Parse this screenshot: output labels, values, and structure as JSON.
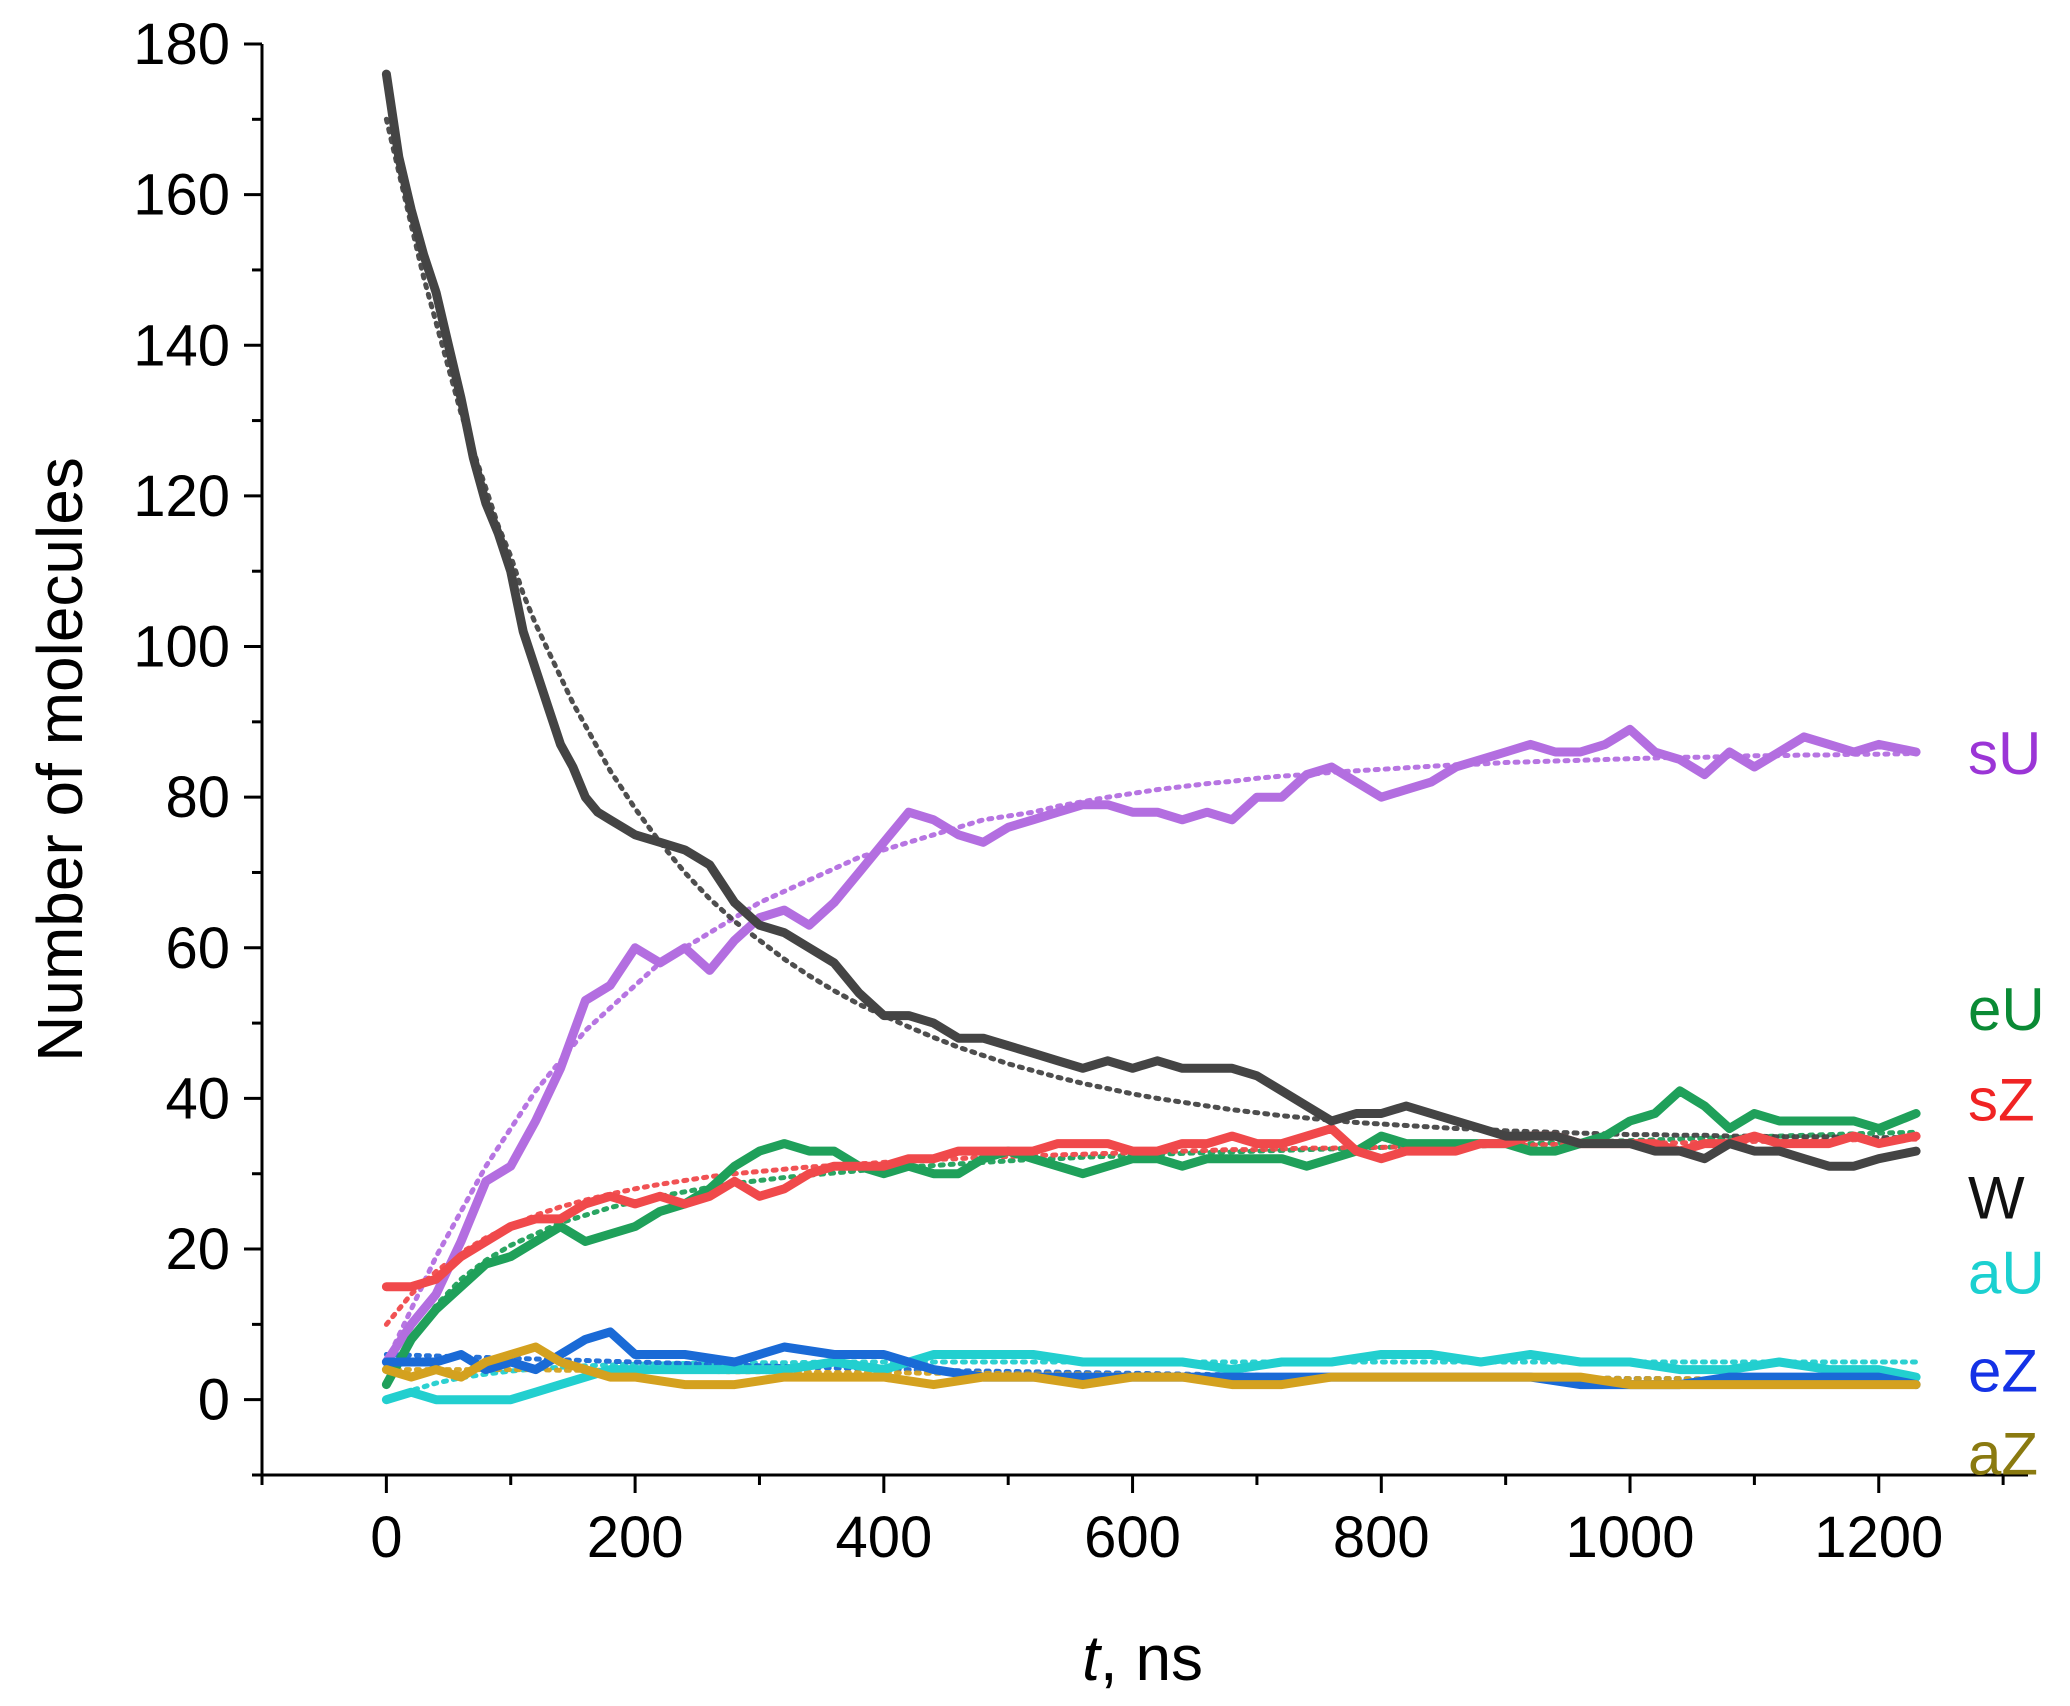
{
  "chart_data": {
    "type": "line",
    "title": "",
    "xlabel_italic": "t",
    "xlabel_rest": ", ns",
    "ylabel": "Number of molecules",
    "xlim": [
      -100,
      1320
    ],
    "ylim": [
      -10,
      180
    ],
    "x_ticks": [
      0,
      200,
      400,
      600,
      800,
      1000,
      1200
    ],
    "x_tick_labels": [
      "0",
      "200",
      "400",
      "600",
      "800",
      "1000",
      "1200"
    ],
    "y_ticks": [
      0,
      20,
      40,
      60,
      80,
      100,
      120,
      140,
      160,
      180
    ],
    "y_tick_labels": [
      "0",
      "20",
      "40",
      "60",
      "80",
      "100",
      "120",
      "140",
      "160",
      "180"
    ],
    "grid": false,
    "legend": "inline labels at right end of each series",
    "series": [
      {
        "name": "sU",
        "color": "#b36ee0",
        "label_color": "#9b35d6",
        "label_y": 86,
        "x": [
          0,
          20,
          40,
          60,
          80,
          100,
          120,
          140,
          160,
          180,
          200,
          220,
          240,
          260,
          280,
          300,
          320,
          340,
          360,
          380,
          400,
          420,
          440,
          460,
          480,
          500,
          520,
          540,
          560,
          580,
          600,
          620,
          640,
          660,
          680,
          700,
          720,
          740,
          760,
          780,
          800,
          820,
          840,
          860,
          880,
          900,
          920,
          940,
          960,
          980,
          1000,
          1020,
          1040,
          1060,
          1080,
          1100,
          1120,
          1140,
          1160,
          1180,
          1200,
          1230
        ],
        "y": [
          5,
          10,
          14,
          21,
          29,
          31,
          37,
          44,
          53,
          55,
          60,
          58,
          60,
          57,
          61,
          64,
          65,
          63,
          66,
          70,
          74,
          78,
          77,
          75,
          74,
          76,
          77,
          78,
          79,
          79,
          78,
          78,
          77,
          78,
          77,
          80,
          80,
          83,
          84,
          82,
          80,
          81,
          82,
          84,
          85,
          86,
          87,
          86,
          86,
          87,
          89,
          86,
          85,
          83,
          86,
          84,
          86,
          88,
          87,
          86,
          87,
          86
        ],
        "fit": [
          5,
          12,
          19,
          25,
          31,
          36,
          41,
          45,
          49,
          52,
          55,
          58,
          60,
          62,
          64,
          66,
          67.5,
          69,
          70.5,
          72,
          73,
          74,
          75,
          76,
          77,
          77.5,
          78,
          78.8,
          79.4,
          80,
          80.5,
          81,
          81.4,
          81.8,
          82.1,
          82.5,
          82.8,
          83,
          83.3,
          83.5,
          83.7,
          83.9,
          84.1,
          84.3,
          84.4,
          84.6,
          84.7,
          84.8,
          84.9,
          85,
          85.1,
          85.2,
          85.3,
          85.3,
          85.4,
          85.5,
          85.5,
          85.6,
          85.6,
          85.7,
          85.7,
          85.8
        ]
      },
      {
        "name": "eU",
        "color": "#1fa05a",
        "label_color": "#0a8a35",
        "label_y": 52,
        "x": [
          0,
          20,
          40,
          60,
          80,
          100,
          120,
          140,
          160,
          180,
          200,
          220,
          240,
          260,
          280,
          300,
          320,
          340,
          360,
          380,
          400,
          420,
          440,
          460,
          480,
          500,
          520,
          540,
          560,
          580,
          600,
          620,
          640,
          660,
          680,
          700,
          720,
          740,
          760,
          780,
          800,
          820,
          840,
          860,
          880,
          900,
          920,
          940,
          960,
          980,
          1000,
          1020,
          1040,
          1060,
          1080,
          1100,
          1120,
          1140,
          1160,
          1180,
          1200,
          1230
        ],
        "y": [
          2,
          8,
          12,
          15,
          18,
          19,
          21,
          23,
          21,
          22,
          23,
          25,
          26,
          28,
          31,
          33,
          34,
          33,
          33,
          31,
          30,
          31,
          30,
          30,
          32,
          33,
          32,
          31,
          30,
          31,
          32,
          32,
          31,
          32,
          32,
          32,
          32,
          31,
          32,
          33,
          35,
          34,
          34,
          34,
          34,
          34,
          33,
          33,
          34,
          35,
          37,
          38,
          41,
          39,
          36,
          38,
          37,
          37,
          37,
          37,
          36,
          38
        ],
        "fit": [
          2,
          8,
          12.5,
          16,
          18.5,
          20.5,
          22,
          23.5,
          24.5,
          25.5,
          26.3,
          27,
          27.6,
          28.2,
          28.7,
          29.1,
          29.5,
          29.8,
          30.1,
          30.4,
          30.7,
          30.9,
          31.1,
          31.3,
          31.5,
          31.7,
          31.9,
          32,
          32.2,
          32.3,
          32.4,
          32.6,
          32.7,
          32.8,
          32.9,
          33,
          33.1,
          33.2,
          33.3,
          33.4,
          33.5,
          33.6,
          33.7,
          33.7,
          33.8,
          33.9,
          34,
          34.1,
          34.2,
          34.3,
          34.4,
          34.5,
          34.6,
          34.7,
          34.8,
          34.9,
          35,
          35.1,
          35.2,
          35.3,
          35.4,
          35.5
        ]
      },
      {
        "name": "sZ",
        "color": "#f0494b",
        "label_color": "#f02424",
        "label_y": 40,
        "x": [
          0,
          20,
          40,
          60,
          80,
          100,
          120,
          140,
          160,
          180,
          200,
          220,
          240,
          260,
          280,
          300,
          320,
          340,
          360,
          380,
          400,
          420,
          440,
          460,
          480,
          500,
          520,
          540,
          560,
          580,
          600,
          620,
          640,
          660,
          680,
          700,
          720,
          740,
          760,
          780,
          800,
          820,
          840,
          860,
          880,
          900,
          920,
          940,
          960,
          980,
          1000,
          1020,
          1040,
          1060,
          1080,
          1100,
          1120,
          1140,
          1160,
          1180,
          1200,
          1230
        ],
        "y": [
          15,
          15,
          16,
          19,
          21,
          23,
          24,
          24,
          26,
          27,
          26,
          27,
          26,
          27,
          29,
          27,
          28,
          30,
          31,
          31,
          31,
          32,
          32,
          33,
          33,
          33,
          33,
          34,
          34,
          34,
          33,
          33,
          34,
          34,
          35,
          34,
          34,
          35,
          36,
          33,
          32,
          33,
          33,
          33,
          34,
          34,
          35,
          35,
          34,
          34,
          34,
          34,
          33,
          34,
          34,
          35,
          34,
          34,
          34,
          35,
          34,
          35
        ],
        "fit": [
          10,
          14,
          17,
          19.5,
          21.5,
          23,
          24.5,
          25.6,
          26.5,
          27.3,
          28,
          28.6,
          29.1,
          29.6,
          30,
          30.3,
          30.6,
          30.9,
          31.1,
          31.3,
          31.5,
          31.7,
          31.9,
          32,
          32.2,
          32.3,
          32.4,
          32.5,
          32.6,
          32.7,
          32.8,
          32.9,
          33,
          33.1,
          33.2,
          33.2,
          33.3,
          33.4,
          33.4,
          33.5,
          33.5,
          33.6,
          33.6,
          33.7,
          33.7,
          33.8,
          33.8,
          33.9,
          33.9,
          34,
          34,
          34.1,
          34.1,
          34.2,
          34.2,
          34.3,
          34.3,
          34.4,
          34.4,
          34.5,
          34.5,
          34.6
        ]
      },
      {
        "name": "W",
        "color": "#444444",
        "label_color": "#111111",
        "label_y": 27,
        "x": [
          0,
          10,
          20,
          30,
          40,
          50,
          60,
          70,
          80,
          90,
          100,
          110,
          120,
          130,
          140,
          150,
          160,
          170,
          180,
          190,
          200,
          220,
          240,
          260,
          280,
          300,
          320,
          340,
          360,
          380,
          400,
          420,
          440,
          460,
          480,
          500,
          520,
          540,
          560,
          580,
          600,
          620,
          640,
          660,
          680,
          700,
          720,
          740,
          760,
          780,
          800,
          820,
          840,
          860,
          880,
          900,
          920,
          940,
          960,
          980,
          1000,
          1020,
          1040,
          1060,
          1080,
          1100,
          1120,
          1140,
          1160,
          1180,
          1200,
          1230
        ],
        "y": [
          176,
          165,
          158,
          152,
          147,
          140,
          133,
          125,
          119,
          115,
          110,
          102,
          97,
          92,
          87,
          84,
          80,
          78,
          77,
          76,
          75,
          74,
          73,
          71,
          66,
          63,
          62,
          60,
          58,
          54,
          51,
          51,
          50,
          48,
          48,
          47,
          46,
          45,
          44,
          45,
          44,
          45,
          44,
          44,
          44,
          43,
          41,
          39,
          37,
          38,
          38,
          39,
          38,
          37,
          36,
          35,
          35,
          35,
          34,
          34,
          34,
          33,
          33,
          32,
          34,
          33,
          33,
          32,
          31,
          31,
          32,
          33
        ],
        "fit": [
          170,
          163,
          156,
          149,
          143,
          137,
          131,
          126,
          121,
          116,
          112,
          107,
          103,
          99.5,
          96,
          92.5,
          89.5,
          86.5,
          83.5,
          81,
          78.5,
          74,
          70,
          66.5,
          63.5,
          61,
          58.5,
          56.3,
          54.3,
          52.5,
          51,
          49.5,
          48.1,
          46.8,
          45.7,
          44.6,
          43.7,
          42.8,
          42,
          41.3,
          40.6,
          40,
          39.5,
          39,
          38.5,
          38.1,
          37.7,
          37.4,
          37.1,
          36.8,
          36.6,
          36.4,
          36.2,
          36,
          35.9,
          35.7,
          35.6,
          35.5,
          35.4,
          35.3,
          35.2,
          35.2,
          35.1,
          35.1,
          35,
          35,
          34.9,
          34.9,
          34.9,
          34.8,
          34.8,
          34.8
        ]
      },
      {
        "name": "aU",
        "color": "#22cfcf",
        "label_color": "#1bd0d0",
        "label_y": 17,
        "x": [
          0,
          20,
          40,
          60,
          80,
          100,
          120,
          140,
          160,
          180,
          200,
          240,
          280,
          320,
          360,
          400,
          440,
          480,
          520,
          560,
          600,
          640,
          680,
          720,
          760,
          800,
          840,
          880,
          920,
          960,
          1000,
          1040,
          1080,
          1120,
          1160,
          1200,
          1230
        ],
        "y": [
          0,
          1,
          0,
          0,
          0,
          0,
          1,
          2,
          3,
          4,
          4,
          4,
          4,
          4,
          5,
          4,
          6,
          6,
          6,
          5,
          5,
          5,
          4,
          5,
          5,
          6,
          6,
          5,
          6,
          5,
          5,
          4,
          4,
          5,
          4,
          4,
          3
        ],
        "fit": [
          0,
          1.2,
          2.2,
          2.9,
          3.4,
          3.8,
          4.1,
          4.3,
          4.5,
          4.6,
          4.7,
          4.8,
          4.9,
          4.9,
          5,
          5,
          5,
          5,
          5,
          5,
          5,
          5,
          5,
          5,
          5,
          5,
          5,
          5,
          5,
          5,
          5,
          5,
          5,
          5,
          5,
          5,
          5
        ]
      },
      {
        "name": "eZ",
        "color": "#1a6ad6",
        "label_color": "#1432e6",
        "label_y": 4,
        "x": [
          0,
          20,
          40,
          60,
          80,
          100,
          120,
          140,
          160,
          180,
          200,
          240,
          280,
          320,
          360,
          400,
          440,
          480,
          520,
          560,
          600,
          640,
          680,
          720,
          760,
          800,
          840,
          880,
          920,
          960,
          1000,
          1040,
          1080,
          1120,
          1160,
          1200,
          1230
        ],
        "y": [
          5,
          5,
          5,
          6,
          4,
          5,
          4,
          6,
          8,
          9,
          6,
          6,
          5,
          7,
          6,
          6,
          4,
          3,
          3,
          3,
          3,
          3,
          3,
          3,
          3,
          3,
          3,
          3,
          3,
          2,
          2,
          2,
          3,
          3,
          3,
          3,
          2
        ],
        "fit": [
          6,
          5.9,
          5.8,
          5.7,
          5.6,
          5.5,
          5.4,
          5.3,
          5.2,
          5.1,
          5,
          4.8,
          4.6,
          4.4,
          4.2,
          4.1,
          3.9,
          3.8,
          3.7,
          3.6,
          3.5,
          3.4,
          3.3,
          3.2,
          3.1,
          3.1,
          3,
          3,
          2.9,
          2.9,
          2.8,
          2.8,
          2.7,
          2.7,
          2.6,
          2.6,
          2.5
        ]
      },
      {
        "name": "aZ",
        "color": "#d4a11f",
        "label_color": "#8a7a10",
        "label_y": -7,
        "x": [
          0,
          20,
          40,
          60,
          80,
          100,
          120,
          140,
          160,
          180,
          200,
          240,
          280,
          320,
          360,
          400,
          440,
          480,
          520,
          560,
          600,
          640,
          680,
          720,
          760,
          800,
          840,
          880,
          920,
          960,
          1000,
          1040,
          1080,
          1120,
          1160,
          1200,
          1230
        ],
        "y": [
          4,
          3,
          4,
          3,
          5,
          6,
          7,
          5,
          4,
          3,
          3,
          2,
          2,
          3,
          3,
          3,
          2,
          3,
          3,
          2,
          3,
          3,
          2,
          2,
          3,
          3,
          3,
          3,
          3,
          3,
          2,
          2,
          2,
          2,
          2,
          2,
          2
        ],
        "fit": [
          4,
          4,
          4,
          4,
          4,
          4,
          4,
          3.9,
          3.9,
          3.9,
          3.8,
          3.8,
          3.7,
          3.7,
          3.6,
          3.6,
          3.5,
          3.5,
          3.4,
          3.4,
          3.3,
          3.3,
          3.2,
          3.2,
          3.1,
          3.1,
          3,
          3,
          2.9,
          2.9,
          2.8,
          2.8,
          2.7,
          2.7,
          2.6,
          2.6,
          2.5
        ]
      }
    ]
  }
}
